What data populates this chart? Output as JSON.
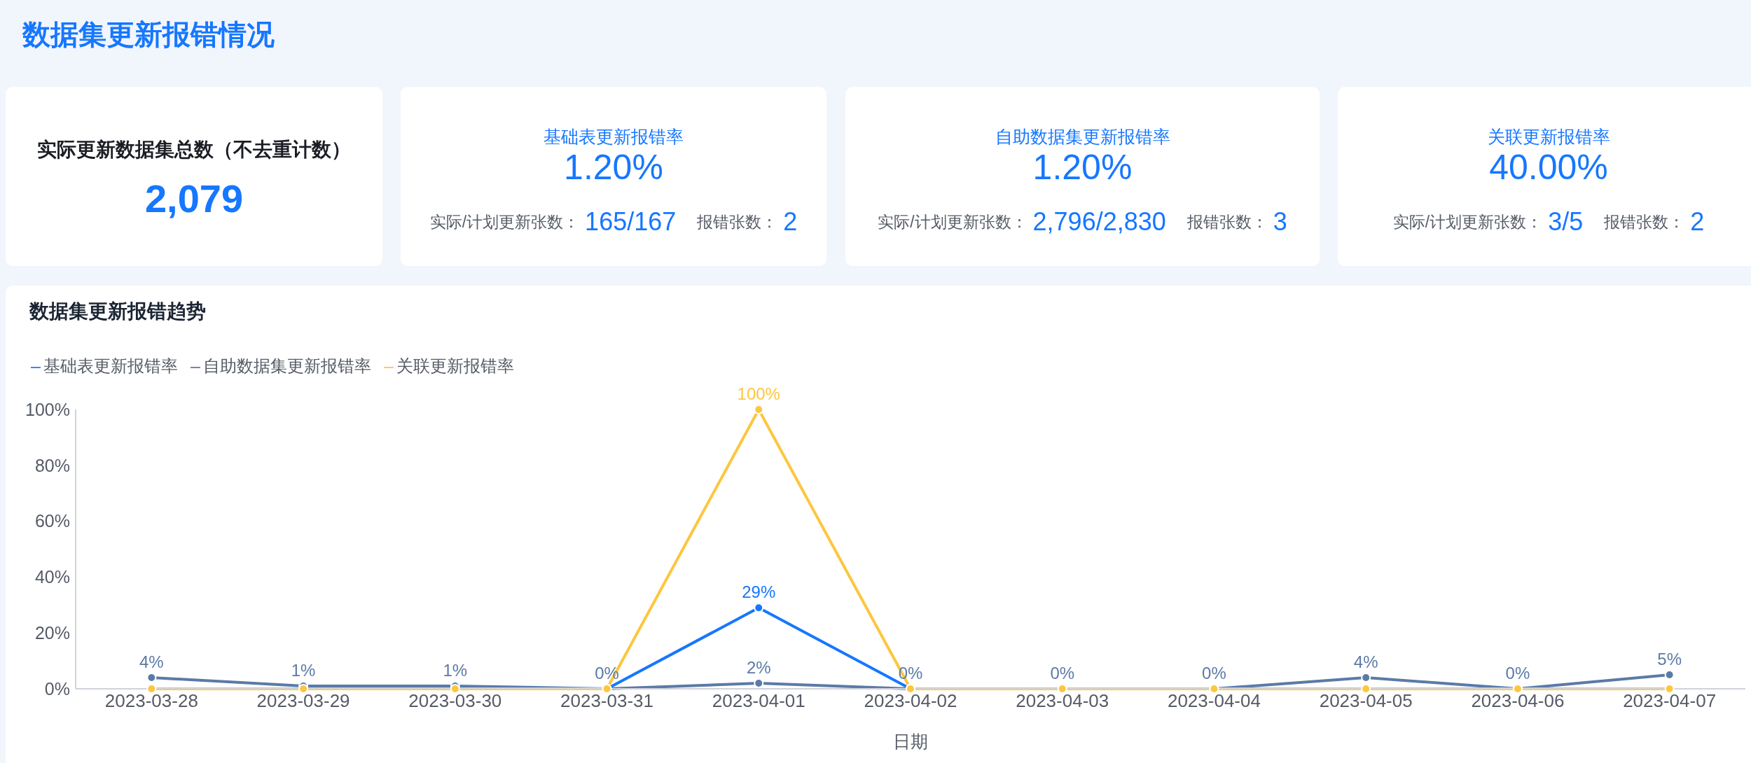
{
  "chart_data": [
    {
      "type": "other",
      "title": "数据集更新报错情况"
    },
    {
      "type": "other",
      "title": "实际更新数据集总数（不去重计数）",
      "annotations": [
        "2,079"
      ]
    },
    {
      "type": "other",
      "title": "基础表更新报错率",
      "annotations": [
        "1.20%",
        "实际/计划更新张数：",
        "165/167",
        "报错张数：",
        "2"
      ]
    },
    {
      "type": "other",
      "title": "自助数据集更新报错率",
      "annotations": [
        "1.20%",
        "实际/计划更新张数：",
        "2,796/2,830",
        "报错张数：",
        "3"
      ]
    },
    {
      "type": "other",
      "title": "关联更新报错率",
      "annotations": [
        "40.00%",
        "实际/计划更新张数：",
        "3/5",
        "报错张数：",
        "2"
      ]
    },
    {
      "type": "line",
      "title": "数据集更新报错趋势",
      "xlabel": "日期",
      "categories": [
        "2023-03-28",
        "2023-03-29",
        "2023-03-30",
        "2023-03-31",
        "2023-04-01",
        "2023-04-02",
        "2023-04-03",
        "2023-04-04",
        "2023-04-05",
        "2023-04-06",
        "2023-04-07"
      ],
      "series": [
        {
          "name": "基础表更新报错率",
          "color": "#1677ff",
          "values": [
            null,
            null,
            null,
            0,
            29,
            0,
            null,
            null,
            null,
            null,
            null
          ],
          "value_labels": [
            null,
            null,
            null,
            null,
            "29%",
            null,
            null,
            null,
            null,
            null,
            null
          ]
        },
        {
          "name": "自助数据集更新报错率",
          "color": "#5b7aa6",
          "values": [
            4,
            1,
            1,
            0,
            2,
            0,
            0,
            0,
            4,
            0,
            5
          ],
          "value_labels": [
            "4%",
            "1%",
            "1%",
            "0%",
            "2%",
            "0%",
            "0%",
            "0%",
            "4%",
            "0%",
            "5%"
          ]
        },
        {
          "name": "关联更新报错率",
          "color": "#fdc63f",
          "values": [
            0,
            0,
            0,
            0,
            100,
            0,
            0,
            0,
            0,
            0,
            0
          ],
          "value_labels": [
            null,
            null,
            null,
            null,
            "100%",
            null,
            null,
            null,
            null,
            null,
            null
          ]
        }
      ],
      "ylim": [
        0,
        100
      ],
      "yticks": [
        {
          "value": 0,
          "label": "0%"
        },
        {
          "value": 20,
          "label": "20%"
        },
        {
          "value": 40,
          "label": "40%"
        },
        {
          "value": 60,
          "label": "60%"
        },
        {
          "value": 80,
          "label": "80%"
        },
        {
          "value": 100,
          "label": "100%"
        }
      ],
      "legend": "top left",
      "marker": "circle"
    }
  ]
}
